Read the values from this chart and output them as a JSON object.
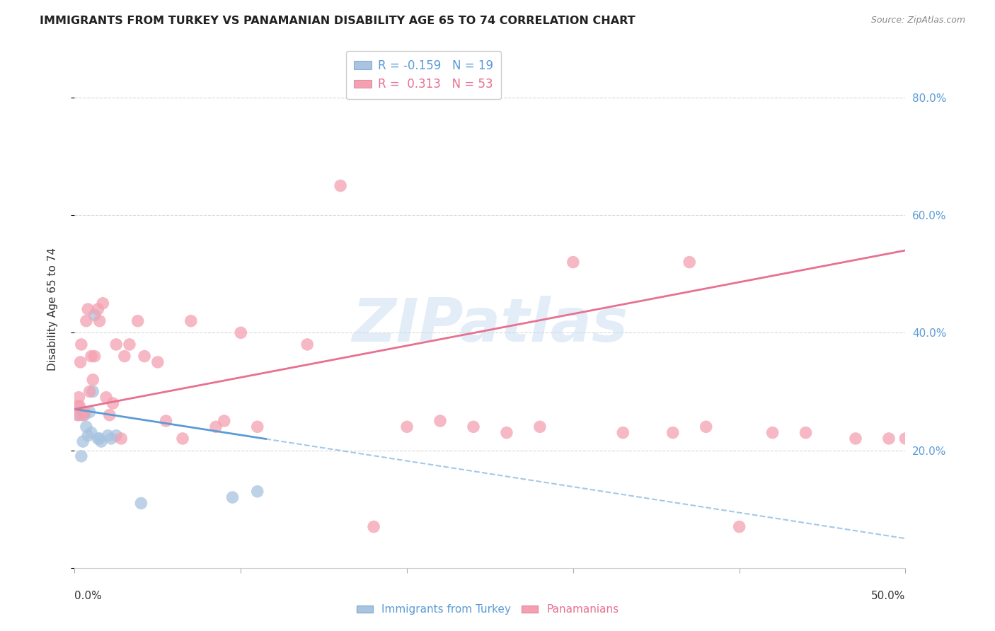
{
  "title": "IMMIGRANTS FROM TURKEY VS PANAMANIAN DISABILITY AGE 65 TO 74 CORRELATION CHART",
  "source": "Source: ZipAtlas.com",
  "ylabel": "Disability Age 65 to 74",
  "xmin": 0.0,
  "xmax": 50.0,
  "ymin": 0.0,
  "ymax": 88.0,
  "legend_entry1": "R = -0.159   N = 19",
  "legend_entry2": "R =  0.313   N = 53",
  "turkey_color": "#a8c4e0",
  "panama_color": "#f4a0b0",
  "turkey_line_color": "#5b9bd5",
  "panama_line_color": "#e87090",
  "watermark": "ZIPatlas",
  "turkey_scatter_x": [
    0.3,
    0.4,
    0.5,
    0.6,
    0.7,
    0.8,
    0.9,
    1.0,
    1.1,
    1.2,
    1.4,
    1.5,
    1.6,
    2.0,
    2.2,
    2.5,
    4.0,
    9.5,
    11.0
  ],
  "turkey_scatter_y": [
    26.0,
    19.0,
    21.5,
    26.0,
    24.0,
    22.5,
    26.5,
    23.0,
    30.0,
    43.0,
    22.0,
    22.0,
    21.5,
    22.5,
    22.0,
    22.5,
    11.0,
    12.0,
    13.0
  ],
  "panama_scatter_x": [
    0.15,
    0.2,
    0.25,
    0.3,
    0.35,
    0.4,
    0.5,
    0.6,
    0.7,
    0.8,
    0.9,
    1.0,
    1.1,
    1.2,
    1.4,
    1.5,
    1.7,
    1.9,
    2.1,
    2.3,
    2.5,
    2.8,
    3.0,
    3.3,
    3.8,
    4.2,
    5.0,
    5.5,
    6.5,
    7.0,
    8.5,
    9.0,
    10.0,
    11.0,
    14.0,
    16.0,
    18.0,
    20.0,
    22.0,
    24.0,
    26.0,
    28.0,
    30.0,
    33.0,
    36.0,
    38.0,
    40.0,
    42.0,
    44.0,
    47.0,
    49.0,
    50.0,
    37.0
  ],
  "panama_scatter_y": [
    26.0,
    27.5,
    29.0,
    27.5,
    35.0,
    38.0,
    26.0,
    26.5,
    42.0,
    44.0,
    30.0,
    36.0,
    32.0,
    36.0,
    44.0,
    42.0,
    45.0,
    29.0,
    26.0,
    28.0,
    38.0,
    22.0,
    36.0,
    38.0,
    42.0,
    36.0,
    35.0,
    25.0,
    22.0,
    42.0,
    24.0,
    25.0,
    40.0,
    24.0,
    38.0,
    65.0,
    7.0,
    24.0,
    25.0,
    24.0,
    23.0,
    24.0,
    52.0,
    23.0,
    23.0,
    24.0,
    7.0,
    23.0,
    23.0,
    22.0,
    22.0,
    22.0,
    52.0
  ],
  "turkey_solid_x0": 0.0,
  "turkey_solid_x1": 11.5,
  "turkey_trend_y_at_0": 27.0,
  "turkey_trend_slope": -0.44,
  "panama_solid_x0": 0.0,
  "panama_solid_x1": 50.0,
  "panama_trend_y_at_0": 27.0,
  "panama_trend_slope": 0.54,
  "gridline_color": "#d8d8d8",
  "background_color": "#ffffff"
}
